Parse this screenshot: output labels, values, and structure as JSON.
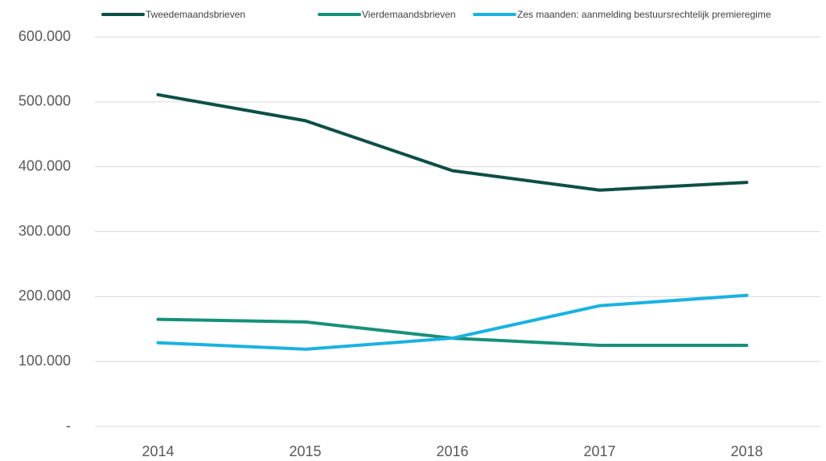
{
  "chart_data": {
    "type": "line",
    "categories": [
      "2014",
      "2015",
      "2016",
      "2017",
      "2018"
    ],
    "series": [
      {
        "name": "Tweedemaandsbrieven",
        "color": "#0d4f45",
        "values": [
          511000,
          471000,
          394000,
          364000,
          376000
        ]
      },
      {
        "name": "Vierdemaandsbrieven",
        "color": "#17907a",
        "values": [
          165000,
          161000,
          136000,
          125000,
          125000
        ]
      },
      {
        "name": "Zes maanden: aanmelding bestuursrechtelijk premieregime",
        "color": "#1ab2e2",
        "values": [
          129000,
          119000,
          136000,
          186000,
          202000
        ]
      }
    ],
    "ylim": [
      0,
      600000
    ],
    "yticks": [
      {
        "value": 0,
        "label": "-"
      },
      {
        "value": 100000,
        "label": "100.000"
      },
      {
        "value": 200000,
        "label": "200.000"
      },
      {
        "value": 300000,
        "label": "300.000"
      },
      {
        "value": 400000,
        "label": "400.000"
      },
      {
        "value": 500000,
        "label": "500.000"
      },
      {
        "value": 600000,
        "label": "600.000"
      }
    ],
    "grid": true,
    "legend": "top"
  }
}
